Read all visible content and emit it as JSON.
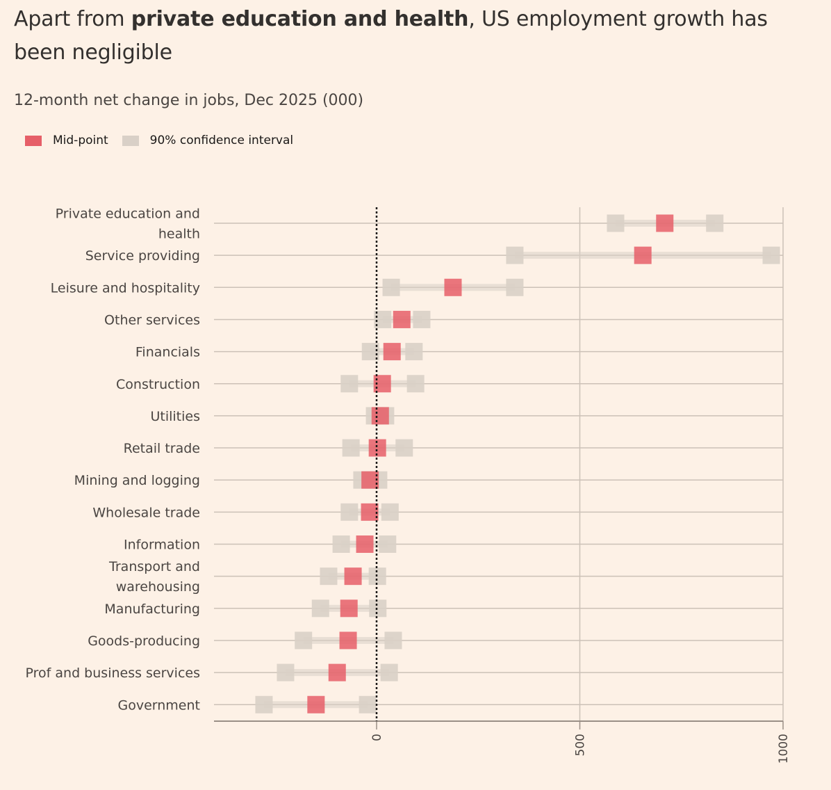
{
  "title_parts": {
    "prefix": "Apart from ",
    "bold": "private education and health",
    "suffix": ", US employment growth has been negligible"
  },
  "colors": {
    "background": "#fdf1e6",
    "midpoint": "#e65f68",
    "interval": "#d9d0c7",
    "gridline": "#ccc1b7",
    "zero_line": "#1a1817"
  },
  "chart_data": {
    "type": "dot-interval",
    "title": "Apart from private education and health, US employment growth has been negligible",
    "subtitle": "12-month net change in jobs, Dec 2025 (000)",
    "xlabel": "",
    "ylabel": "",
    "xlim": [
      -400,
      1000
    ],
    "xticks": [
      0,
      500,
      1000
    ],
    "xtick_labels": [
      "0",
      "500",
      "1000"
    ],
    "grid": true,
    "legend": {
      "placement": "top-left",
      "entries": [
        {
          "label": "Mid-point",
          "color": "#e65f68"
        },
        {
          "label": "90% confidence interval",
          "color": "#d9d0c7"
        }
      ]
    },
    "categories": [
      "Private education and health",
      "Service providing",
      "Leisure and hospitality",
      "Other services",
      "Financials",
      "Construction",
      "Utilities",
      "Retail trade",
      "Mining and logging",
      "Wholesale trade",
      "Information",
      "Transport and warehousing",
      "Manufacturing",
      "Goods-producing",
      "Prof and business services",
      "Government"
    ],
    "category_label_lines": [
      [
        "Private education and",
        "health"
      ],
      [
        "Service providing"
      ],
      [
        "Leisure and hospitality"
      ],
      [
        "Other services"
      ],
      [
        "Financials"
      ],
      [
        "Construction"
      ],
      [
        "Utilities"
      ],
      [
        "Retail trade"
      ],
      [
        "Mining and logging"
      ],
      [
        "Wholesale trade"
      ],
      [
        "Information"
      ],
      [
        "Transport and",
        "warehousing"
      ],
      [
        "Manufacturing"
      ],
      [
        "Goods-producing"
      ],
      [
        "Prof and business services"
      ],
      [
        "Government"
      ]
    ],
    "series": [
      {
        "name": "Mid-point",
        "values": [
          709,
          655,
          188,
          62,
          38,
          14,
          9,
          2,
          -16,
          -17,
          -29,
          -58,
          -68,
          -70,
          -97,
          -149
        ]
      },
      {
        "name": "90% CI lower",
        "values": [
          588,
          340,
          36,
          15,
          -15,
          -67,
          -5,
          -63,
          -36,
          -67,
          -87,
          -118,
          -138,
          -180,
          -224,
          -277
        ]
      },
      {
        "name": "90% CI upper",
        "values": [
          832,
          971,
          340,
          111,
          92,
          96,
          22,
          68,
          5,
          33,
          27,
          2,
          3,
          41,
          31,
          -22
        ]
      }
    ]
  }
}
